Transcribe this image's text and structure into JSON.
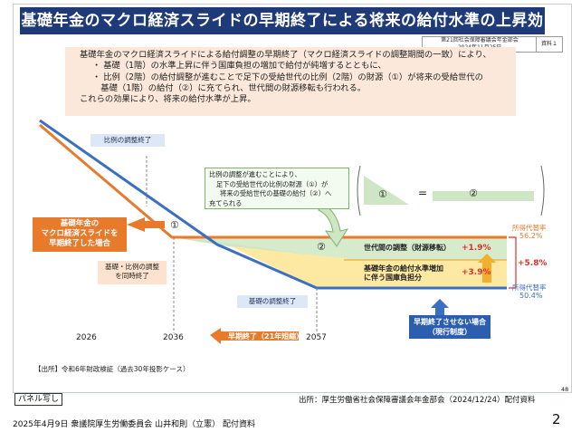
{
  "title": "基礎年金のマクロ経済スライドの早期終了による将来の給付水準の上昇効果",
  "meeting_line1": "第21回社会保障審議会年金部会",
  "meeting_line2": "2024年11月25日",
  "doc_no": "資料１",
  "summary": [
    "基礎年金のマクロ経済スライドによる給付調整の早期終了（マクロ経済スライドの調整期間の一致）により、",
    "・ 基礎（1階）の水準上昇に伴う国庫負担の増加で給付が純増するとともに、",
    "・ 比例（2階）の給付調整が進むことで足下の受給世代の比例（2階）の財源（①）が将来の受給世代の",
    "　基礎（1階）の給付（②）に充てられ、世代間の財源移転も行われる。",
    "これらの効果により、将来の給付水準が上昇。"
  ],
  "labels": {
    "proportional_end": "比例の調整終了",
    "early_end_box": [
      "基礎年金の",
      "マクロ経済スライドを",
      "早期終了した場合"
    ],
    "simul_end": [
      "基礎・比例の調整",
      "を同時終了"
    ],
    "basic_end": "基礎の調整終了",
    "explain_box": [
      "比例の調整が進むことにより、",
      "足下の受給世代の比例の財源（①）が",
      "将来の受給世代の基礎の給付（②）へ",
      "充てられる"
    ],
    "circle1": "①",
    "circle2": "②",
    "equals": "=",
    "intergen": "世代間の調整（財源移転）",
    "tax_lines": [
      "基礎年金の給付水準増加",
      "に伴う国庫負担分"
    ],
    "plus19": "+1.9%",
    "plus39": "+3.9%",
    "plus58": "+5.8%",
    "rate_label_top": "所得代替率",
    "rate_top": "56.2%",
    "rate_label_bottom": "所得代替率",
    "rate_bottom": "50.4%",
    "no_early_box": [
      "早期終了させない場合",
      "（現行制度）"
    ],
    "early_arrow": "早期終了（21年短縮）",
    "year_2026": "2026",
    "year_2036": "2036",
    "year_2057": "2057",
    "source_small": "【出所】令和6年財政検証（過去30年投影ケース）"
  },
  "page_small_no": "48",
  "panel": "パネル写し",
  "source_footer": "出所：厚生労働省社会保障審議会年金部会（2024/12/24）配付資料",
  "bottom_line": "2025年4月9日  衆議院厚生労働委員会  山井和則（立憲）  配付資料",
  "page_no": "2",
  "colors": {
    "navy": "#1f3a78",
    "orange": "#e87a2c",
    "blue": "#3a6fc4",
    "green": "#cfe6c4",
    "yellow": "#fde9a2",
    "red": "#e0302a"
  }
}
